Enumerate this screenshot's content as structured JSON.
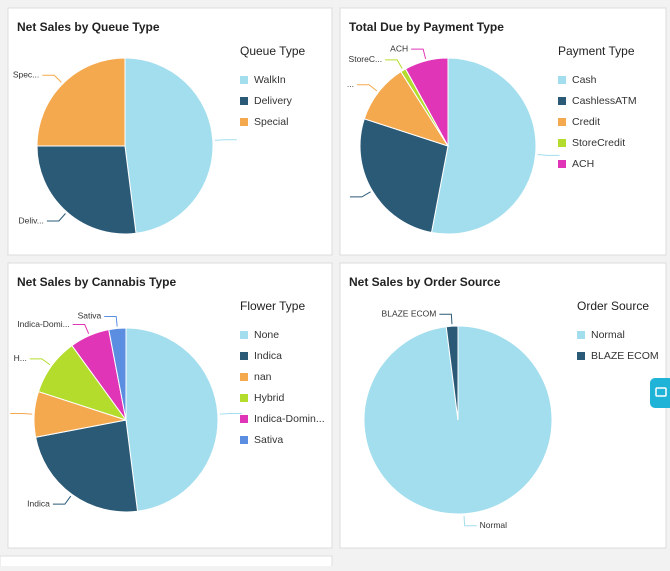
{
  "chart_data": [
    {
      "type": "pie",
      "title": "Net Sales by Queue Type",
      "legend_title": "Queue Type",
      "labels": [
        "WalkIn",
        "Delivery",
        "Special"
      ],
      "values": [
        48,
        27,
        25
      ],
      "colors": [
        "#a3deee",
        "#2b5a77",
        "#f5a94f"
      ],
      "slice_labels": [
        null,
        "Deliv...",
        "Spec..."
      ]
    },
    {
      "type": "pie",
      "title": "Total Due by Payment Type",
      "legend_title": "Payment Type",
      "labels": [
        "Cash",
        "CashlessATM",
        "Credit",
        "StoreCredit",
        "ACH"
      ],
      "values": [
        53,
        27,
        11,
        1,
        8
      ],
      "colors": [
        "#a3deee",
        "#2b5a77",
        "#f5a94f",
        "#b4dc2c",
        "#e035b6"
      ],
      "slice_labels": [
        null,
        null,
        "...",
        "StoreC...",
        "ACH"
      ]
    },
    {
      "type": "pie",
      "title": "Net Sales by Cannabis Type",
      "legend_title": "Flower Type",
      "labels": [
        "None",
        "Indica",
        "nan",
        "Hybrid",
        "Indica-Domin...",
        "Sativa"
      ],
      "values": [
        48,
        24,
        8,
        10,
        7,
        3
      ],
      "colors": [
        "#a3deee",
        "#2b5a77",
        "#f5a94f",
        "#b4dc2c",
        "#e035b6",
        "#5b8ee0"
      ],
      "slice_labels": [
        null,
        "Indica",
        null,
        "H...",
        "Indica-Domi...",
        "Sativa"
      ]
    },
    {
      "type": "pie",
      "title": "Net Sales by Order Source",
      "legend_title": "Order Source",
      "labels": [
        "Normal",
        "BLAZE ECOM"
      ],
      "values": [
        98,
        2
      ],
      "colors": [
        "#a3deee",
        "#2b5a77"
      ],
      "slice_labels": [
        "Normal",
        "BLAZE ECOM"
      ]
    }
  ]
}
